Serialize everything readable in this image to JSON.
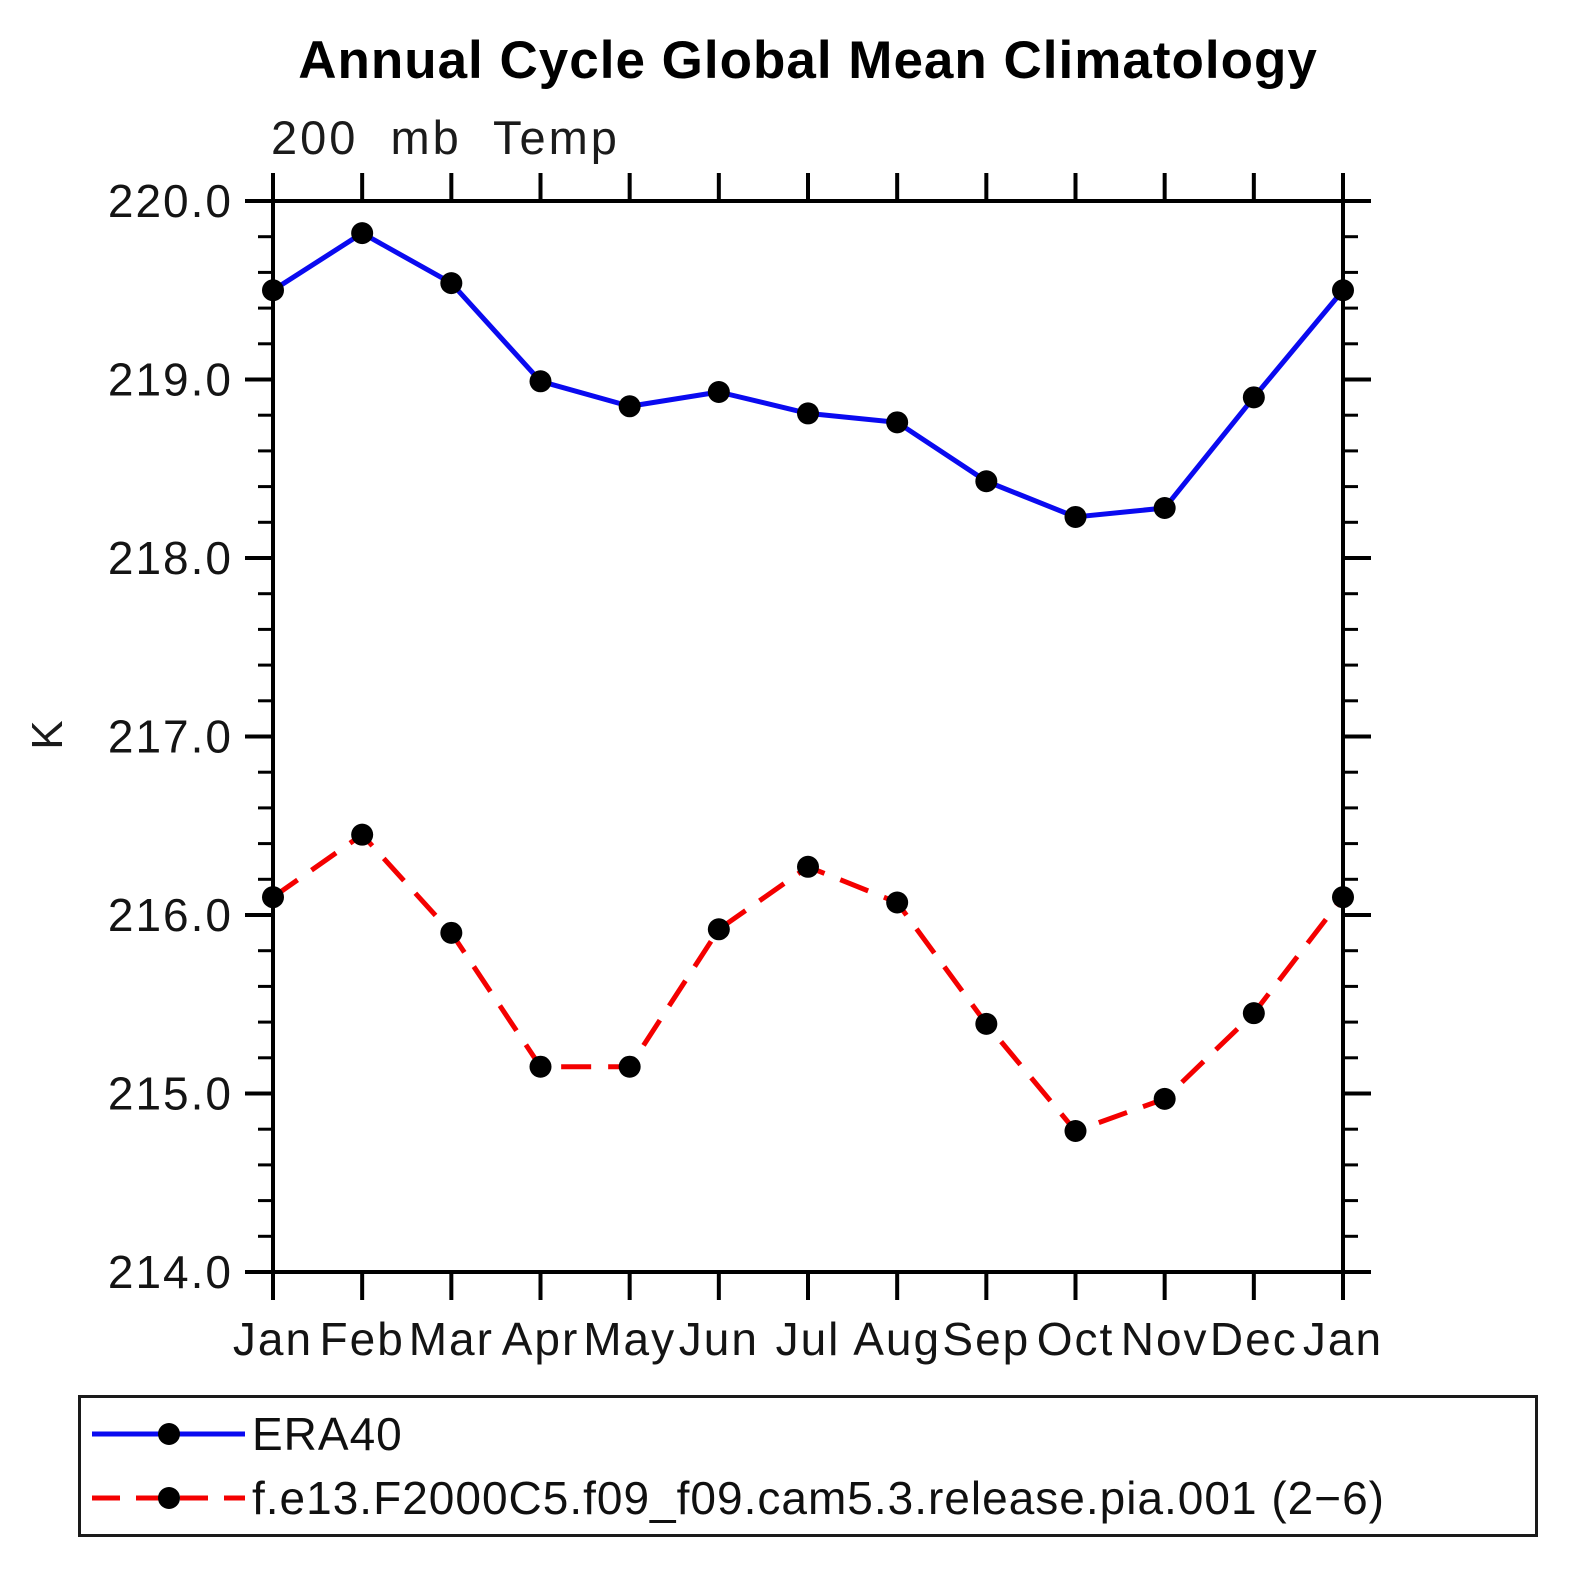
{
  "title": "Annual Cycle Global Mean Climatology",
  "subtitle": "200 mb Temp",
  "ylabel": "K",
  "chart_data": {
    "type": "line",
    "title": "Annual Cycle Global Mean Climatology",
    "subtitle": "200 mb Temp",
    "xlabel": "",
    "ylabel": "K",
    "categories": [
      "Jan",
      "Feb",
      "Mar",
      "Apr",
      "May",
      "Jun",
      "Jul",
      "Aug",
      "Sep",
      "Oct",
      "Nov",
      "Dec",
      "Jan"
    ],
    "ylim": [
      214.0,
      220.0
    ],
    "ytick_major_step": 1.0,
    "ytick_minor_step": 0.2,
    "yticks": [
      {
        "v": 220.0,
        "label": "220.0"
      },
      {
        "v": 219.0,
        "label": "219.0"
      },
      {
        "v": 218.0,
        "label": "218.0"
      },
      {
        "v": 217.0,
        "label": "217.0"
      },
      {
        "v": 216.0,
        "label": "216.0"
      },
      {
        "v": 215.0,
        "label": "215.0"
      },
      {
        "v": 214.0,
        "label": "214.0"
      }
    ],
    "grid": false,
    "legend_position": "bottom",
    "marker": {
      "shape": "circle",
      "color": "#000000",
      "radius": 11
    },
    "series": [
      {
        "key": "era40",
        "name": "ERA40",
        "color": "#0a0af0",
        "style": "solid",
        "values": [
          219.5,
          219.82,
          219.54,
          218.99,
          218.85,
          218.93,
          218.81,
          218.76,
          218.43,
          218.23,
          218.28,
          218.9,
          219.5
        ]
      },
      {
        "key": "model",
        "name": "f.e13.F2000C5.f09_f09.cam5.3.release.pia.001 (2−6)",
        "color": "#f40000",
        "style": "dashed",
        "values": [
          216.1,
          216.45,
          215.9,
          215.15,
          215.15,
          215.92,
          216.27,
          216.07,
          215.39,
          214.79,
          214.97,
          215.45,
          216.1
        ]
      }
    ]
  }
}
